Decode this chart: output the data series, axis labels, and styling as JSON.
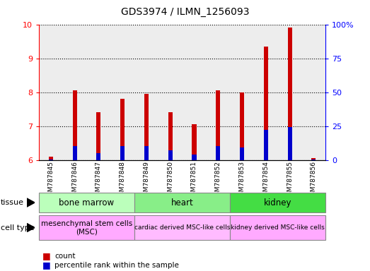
{
  "title": "GDS3974 / ILMN_1256093",
  "samples": [
    "GSM787845",
    "GSM787846",
    "GSM787847",
    "GSM787848",
    "GSM787849",
    "GSM787850",
    "GSM787851",
    "GSM787852",
    "GSM787853",
    "GSM787854",
    "GSM787855",
    "GSM787856"
  ],
  "count_values": [
    6.1,
    8.05,
    7.4,
    7.8,
    7.95,
    7.4,
    7.05,
    8.05,
    8.0,
    9.35,
    9.9,
    6.05
  ],
  "percentile_values": [
    0.5,
    10,
    5,
    10,
    10,
    7,
    4,
    10,
    9,
    22,
    24,
    0.5
  ],
  "ymin": 6,
  "ymax": 10,
  "yticks_left": [
    6,
    7,
    8,
    9,
    10
  ],
  "yticks_right": [
    0,
    25,
    50,
    75,
    100
  ],
  "bar_color_red": "#cc0000",
  "bar_color_blue": "#0000cc",
  "tissue_groups": [
    {
      "label": "bone marrow",
      "start": 0,
      "end": 3,
      "color": "#bbffbb"
    },
    {
      "label": "heart",
      "start": 4,
      "end": 7,
      "color": "#88ee88"
    },
    {
      "label": "kidney",
      "start": 8,
      "end": 11,
      "color": "#44dd44"
    }
  ],
  "cell_type_groups": [
    {
      "label": "mesenchymal stem cells\n(MSC)",
      "start": 0,
      "end": 3,
      "color": "#ffaaff"
    },
    {
      "label": "cardiac derived MSC-like cells",
      "start": 4,
      "end": 7,
      "color": "#ffbbff"
    },
    {
      "label": "kidney derived MSC-like cells",
      "start": 8,
      "end": 11,
      "color": "#ffaaff"
    }
  ],
  "legend_red": "count",
  "legend_blue": "percentile rank within the sample",
  "tissue_label": "tissue",
  "cell_type_label": "cell type",
  "bar_width": 0.18
}
